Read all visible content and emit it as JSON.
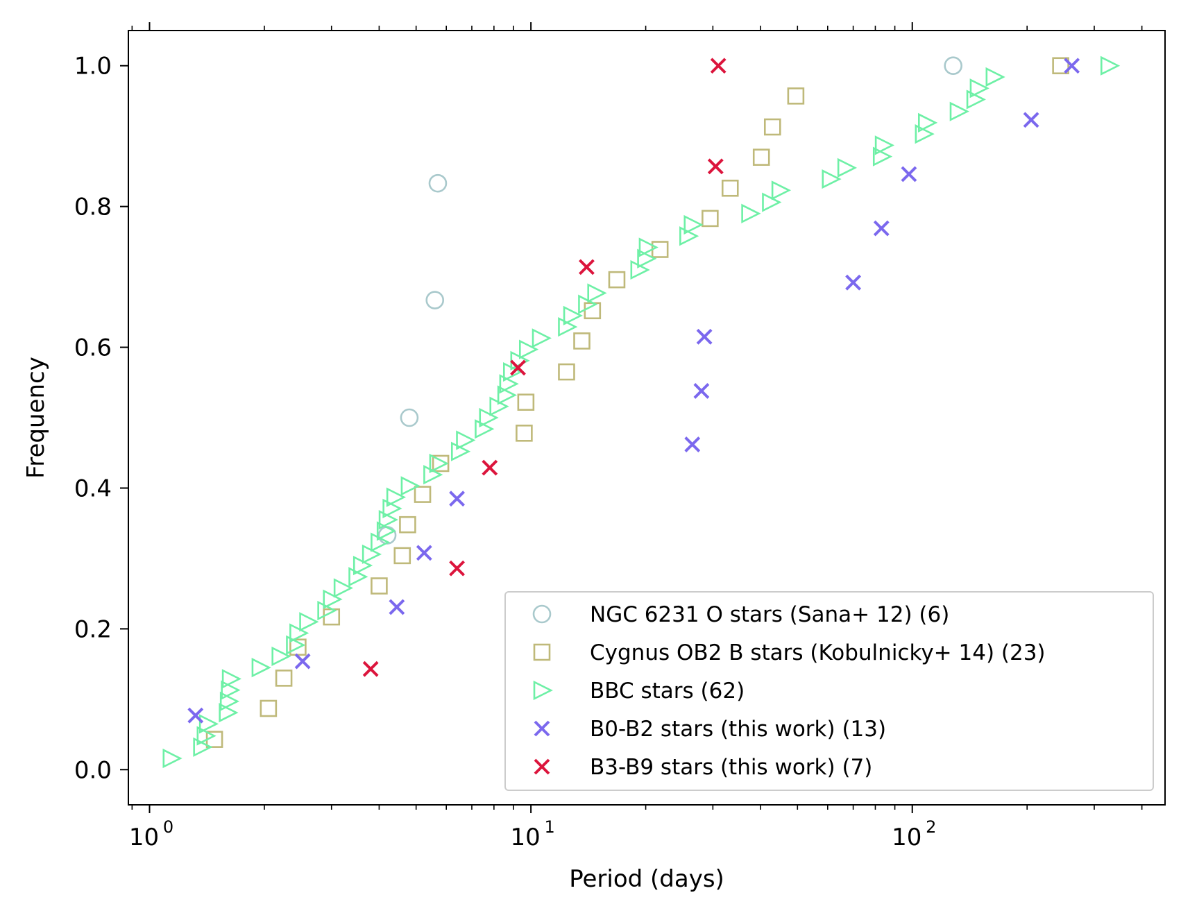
{
  "chart_data": {
    "type": "scatter",
    "title": "",
    "xlabel": "Period (days)",
    "ylabel": "Frequency",
    "xscale": "log",
    "xlim": [
      0.88,
      460
    ],
    "ylim": [
      -0.05,
      1.05
    ],
    "grid": false,
    "legend_position": "lower-right",
    "x_ticks": [
      {
        "value": 1,
        "base": "10",
        "exp": "0"
      },
      {
        "value": 10,
        "base": "10",
        "exp": "1"
      },
      {
        "value": 100,
        "base": "10",
        "exp": "2"
      }
    ],
    "y_ticks": [
      {
        "value": 0.0,
        "label": "0.0"
      },
      {
        "value": 0.2,
        "label": "0.2"
      },
      {
        "value": 0.4,
        "label": "0.4"
      },
      {
        "value": 0.6,
        "label": "0.6"
      },
      {
        "value": 0.8,
        "label": "0.8"
      },
      {
        "value": 1.0,
        "label": "1.0"
      }
    ],
    "series": [
      {
        "name": "NGC 6231 O stars (Sana+ 12) (6)",
        "marker": "circle",
        "color": "#a9c9cc",
        "points": [
          [
            4.2,
            0.333
          ],
          [
            4.8,
            0.5
          ],
          [
            5.6,
            0.667
          ],
          [
            5.7,
            0.833
          ],
          [
            128,
            1.0
          ]
        ]
      },
      {
        "name": "Cygnus OB2 B stars (Kobulnicky+ 14) (23)",
        "marker": "square",
        "color": "#bfb97a",
        "points": [
          [
            1.48,
            0.043
          ],
          [
            2.05,
            0.087
          ],
          [
            2.25,
            0.13
          ],
          [
            2.45,
            0.174
          ],
          [
            3.0,
            0.217
          ],
          [
            4.0,
            0.261
          ],
          [
            4.6,
            0.304
          ],
          [
            4.75,
            0.348
          ],
          [
            5.2,
            0.391
          ],
          [
            5.8,
            0.435
          ],
          [
            9.6,
            0.478
          ],
          [
            9.7,
            0.522
          ],
          [
            12.4,
            0.565
          ],
          [
            13.6,
            0.609
          ],
          [
            14.5,
            0.652
          ],
          [
            16.8,
            0.696
          ],
          [
            21.8,
            0.739
          ],
          [
            29.5,
            0.783
          ],
          [
            33.3,
            0.826
          ],
          [
            40.2,
            0.87
          ],
          [
            43.0,
            0.913
          ],
          [
            49.5,
            0.957
          ],
          [
            245,
            1.0
          ]
        ]
      },
      {
        "name": "BBC stars (62)",
        "marker": "triangle-right",
        "color": "#6ef0a6",
        "points": [
          [
            1.14,
            0.016
          ],
          [
            1.37,
            0.032
          ],
          [
            1.4,
            0.048
          ],
          [
            1.42,
            0.065
          ],
          [
            1.6,
            0.081
          ],
          [
            1.61,
            0.097
          ],
          [
            1.62,
            0.113
          ],
          [
            1.63,
            0.129
          ],
          [
            1.95,
            0.145
          ],
          [
            2.2,
            0.161
          ],
          [
            2.4,
            0.177
          ],
          [
            2.45,
            0.194
          ],
          [
            2.6,
            0.21
          ],
          [
            2.9,
            0.226
          ],
          [
            3.0,
            0.242
          ],
          [
            3.2,
            0.258
          ],
          [
            3.5,
            0.274
          ],
          [
            3.6,
            0.29
          ],
          [
            3.8,
            0.306
          ],
          [
            4.0,
            0.323
          ],
          [
            4.15,
            0.339
          ],
          [
            4.2,
            0.355
          ],
          [
            4.3,
            0.371
          ],
          [
            4.4,
            0.387
          ],
          [
            4.8,
            0.403
          ],
          [
            5.5,
            0.419
          ],
          [
            5.7,
            0.435
          ],
          [
            6.5,
            0.452
          ],
          [
            6.7,
            0.468
          ],
          [
            7.5,
            0.484
          ],
          [
            7.7,
            0.5
          ],
          [
            8.2,
            0.516
          ],
          [
            8.6,
            0.532
          ],
          [
            8.7,
            0.548
          ],
          [
            8.9,
            0.565
          ],
          [
            9.3,
            0.581
          ],
          [
            9.8,
            0.597
          ],
          [
            10.6,
            0.613
          ],
          [
            12.4,
            0.629
          ],
          [
            12.8,
            0.645
          ],
          [
            14.0,
            0.661
          ],
          [
            14.8,
            0.677
          ],
          [
            19.2,
            0.71
          ],
          [
            20.0,
            0.726
          ],
          [
            20.2,
            0.742
          ],
          [
            25.8,
            0.758
          ],
          [
            26.5,
            0.774
          ],
          [
            37.5,
            0.79
          ],
          [
            42.5,
            0.806
          ],
          [
            45.0,
            0.823
          ],
          [
            61.0,
            0.839
          ],
          [
            67.0,
            0.855
          ],
          [
            83.0,
            0.871
          ],
          [
            84.0,
            0.887
          ],
          [
            107,
            0.903
          ],
          [
            109,
            0.919
          ],
          [
            132,
            0.935
          ],
          [
            146,
            0.952
          ],
          [
            149,
            0.968
          ],
          [
            164,
            0.984
          ],
          [
            328,
            1.0
          ]
        ]
      },
      {
        "name": "B0-B2 stars (this work) (13)",
        "marker": "x",
        "color": "#7b68ee",
        "points": [
          [
            1.32,
            0.077
          ],
          [
            2.52,
            0.154
          ],
          [
            4.45,
            0.231
          ],
          [
            5.25,
            0.308
          ],
          [
            6.4,
            0.385
          ],
          [
            26.5,
            0.462
          ],
          [
            28.0,
            0.538
          ],
          [
            28.5,
            0.615
          ],
          [
            70.0,
            0.692
          ],
          [
            83.0,
            0.769
          ],
          [
            98.0,
            0.846
          ],
          [
            205,
            0.923
          ],
          [
            262,
            1.0
          ]
        ]
      },
      {
        "name": "B3-B9 stars (this work) (7)",
        "marker": "x",
        "color": "#dc143c",
        "points": [
          [
            3.8,
            0.143
          ],
          [
            6.4,
            0.286
          ],
          [
            7.8,
            0.429
          ],
          [
            9.25,
            0.571
          ],
          [
            14.0,
            0.714
          ],
          [
            30.5,
            0.857
          ],
          [
            31.0,
            1.0
          ]
        ]
      }
    ]
  }
}
